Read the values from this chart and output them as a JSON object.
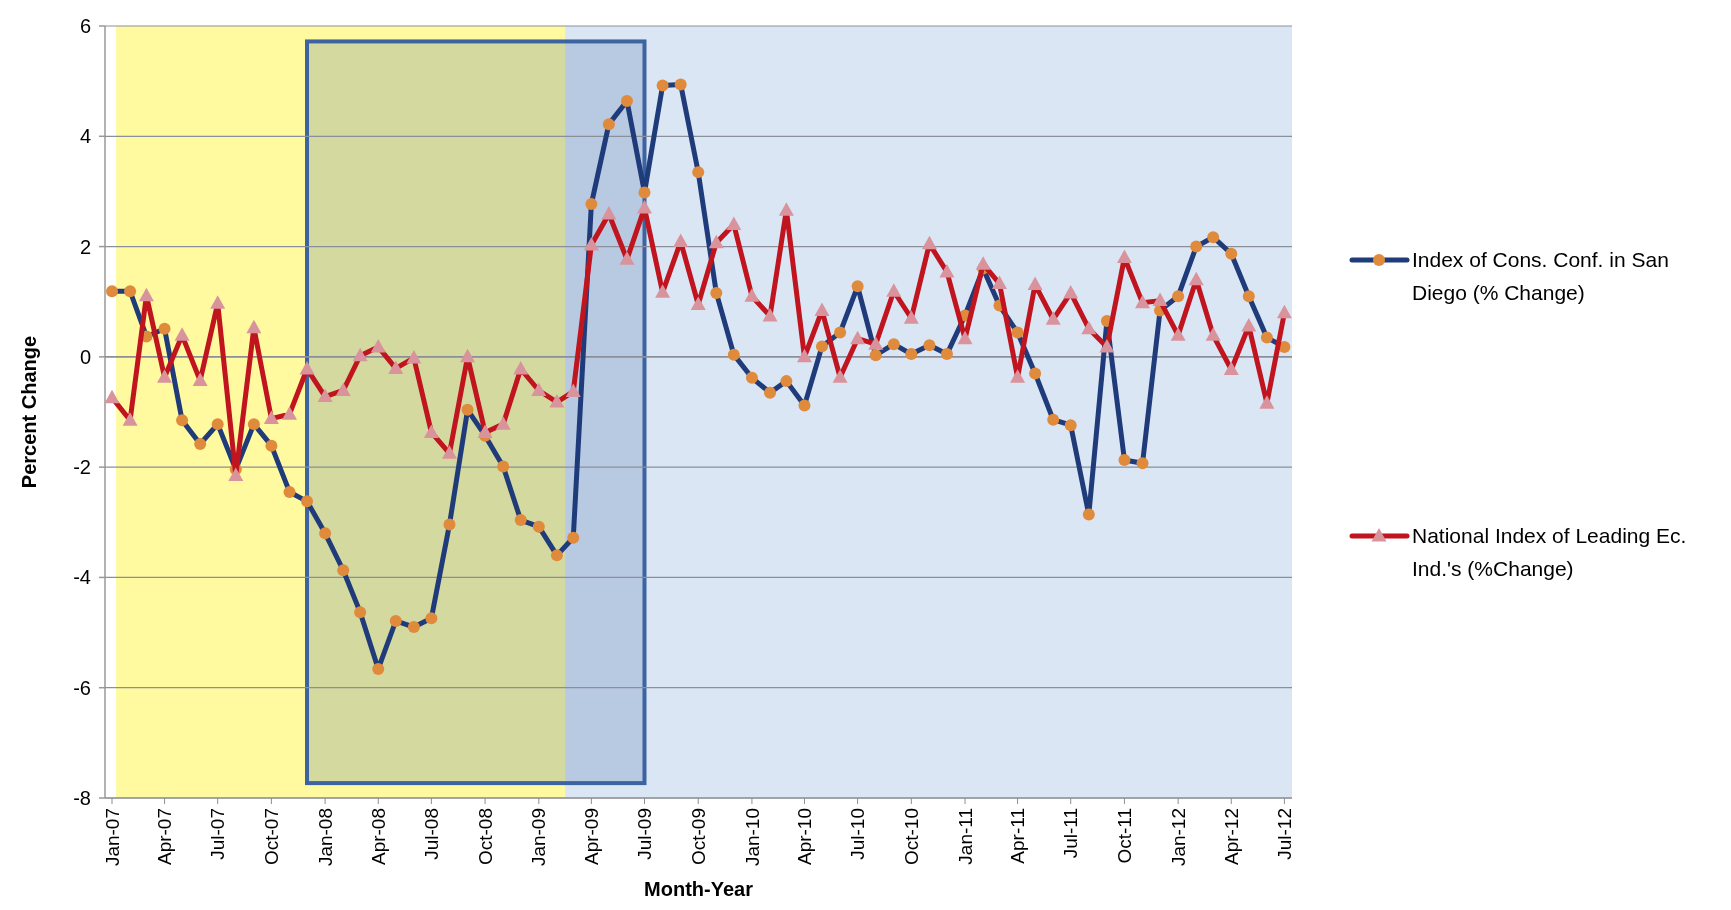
{
  "chart_data": {
    "type": "line",
    "xlabel": "Month-Year",
    "ylabel": "Percent Change",
    "x": [
      "2007-01",
      "2007-02",
      "2007-03",
      "2007-04",
      "2007-05",
      "2007-06",
      "2007-07",
      "2007-08",
      "2007-09",
      "2007-10",
      "2007-11",
      "2007-12",
      "2008-01",
      "2008-02",
      "2008-03",
      "2008-04",
      "2008-05",
      "2008-06",
      "2008-07",
      "2008-08",
      "2008-09",
      "2008-10",
      "2008-11",
      "2008-12",
      "2009-01",
      "2009-02",
      "2009-03",
      "2009-04",
      "2009-05",
      "2009-06",
      "2009-07",
      "2009-08",
      "2009-09",
      "2009-10",
      "2009-11",
      "2009-12",
      "2010-01",
      "2010-02",
      "2010-03",
      "2010-04",
      "2010-05",
      "2010-06",
      "2010-07",
      "2010-08",
      "2010-09",
      "2010-10",
      "2010-11",
      "2010-12",
      "2011-01",
      "2011-02",
      "2011-03",
      "2011-04",
      "2011-05",
      "2011-06",
      "2011-07",
      "2011-08",
      "2011-09",
      "2011-10",
      "2011-11",
      "2011-12",
      "2012-01",
      "2012-02",
      "2012-03",
      "2012-04",
      "2012-05",
      "2012-06",
      "2012-07"
    ],
    "series": [
      {
        "name": "Index of Cons. Conf. in San Diego (% Change)",
        "color": "#1f3b7a",
        "marker": "circle",
        "values": [
          1.19,
          1.19,
          0.37,
          0.51,
          -1.15,
          -1.58,
          -1.22,
          -2.04,
          -1.22,
          -1.61,
          -2.45,
          -2.62,
          -3.2,
          -3.87,
          -4.63,
          -5.66,
          -4.79,
          -4.9,
          -4.74,
          -3.04,
          -0.96,
          -1.43,
          -1.99,
          -2.96,
          -3.08,
          -3.6,
          -3.28,
          2.77,
          4.22,
          4.64,
          2.98,
          4.92,
          4.94,
          3.35,
          1.16,
          0.04,
          -0.38,
          -0.65,
          -0.44,
          -0.88,
          0.19,
          0.44,
          1.28,
          0.03,
          0.23,
          0.05,
          0.21,
          0.05,
          0.75,
          1.6,
          0.93,
          0.44,
          -0.3,
          -1.14,
          -1.24,
          -2.86,
          0.65,
          -1.87,
          -1.93,
          0.84,
          1.1,
          2.0,
          2.17,
          1.87,
          1.1,
          0.35,
          0.18
        ]
      },
      {
        "name": "National Index of Leading Ec. Ind.'s (%Change)",
        "color": "#c0141e",
        "marker": "triangle",
        "values": [
          -0.74,
          -1.15,
          1.11,
          -0.37,
          0.39,
          -0.43,
          0.97,
          -2.15,
          0.53,
          -1.12,
          -1.04,
          -0.22,
          -0.72,
          -0.61,
          0.02,
          0.18,
          -0.21,
          -0.02,
          -1.37,
          -1.75,
          0.0,
          -1.37,
          -1.22,
          -0.22,
          -0.61,
          -0.82,
          -0.63,
          2.03,
          2.59,
          1.77,
          2.7,
          1.17,
          2.09,
          0.95,
          2.07,
          2.4,
          1.1,
          0.74,
          2.66,
          0.0,
          0.84,
          -0.37,
          0.33,
          0.23,
          1.19,
          0.7,
          2.05,
          1.54,
          0.33,
          1.68,
          1.33,
          -0.37,
          1.31,
          0.68,
          1.16,
          0.51,
          0.18,
          1.8,
          0.98,
          1.02,
          0.39,
          1.4,
          0.39,
          -0.23,
          0.56,
          -0.84,
          0.8
        ]
      }
    ],
    "xlim": [
      "2006-12-20",
      "2012-07-14"
    ],
    "xticks": [
      {
        "value": "2007-01",
        "label": "Jan-07"
      },
      {
        "value": "2007-04",
        "label": "Apr-07"
      },
      {
        "value": "2007-07",
        "label": "Jul-07"
      },
      {
        "value": "2007-10",
        "label": "Oct-07"
      },
      {
        "value": "2008-01",
        "label": "Jan-08"
      },
      {
        "value": "2008-04",
        "label": "Apr-08"
      },
      {
        "value": "2008-07",
        "label": "Jul-08"
      },
      {
        "value": "2008-10",
        "label": "Oct-08"
      },
      {
        "value": "2009-01",
        "label": "Jan-09"
      },
      {
        "value": "2009-04",
        "label": "Apr-09"
      },
      {
        "value": "2009-07",
        "label": "Jul-09"
      },
      {
        "value": "2009-10",
        "label": "Oct-09"
      },
      {
        "value": "2010-01",
        "label": "Jan-10"
      },
      {
        "value": "2010-04",
        "label": "Apr-10"
      },
      {
        "value": "2010-07",
        "label": "Jul-10"
      },
      {
        "value": "2010-10",
        "label": "Oct-10"
      },
      {
        "value": "2011-01",
        "label": "Jan-11"
      },
      {
        "value": "2011-04",
        "label": "Apr-11"
      },
      {
        "value": "2011-07",
        "label": "Jul-11"
      },
      {
        "value": "2011-10",
        "label": "Oct-11"
      },
      {
        "value": "2012-01",
        "label": "Jan-12"
      },
      {
        "value": "2012-04",
        "label": "Apr-12"
      },
      {
        "value": "2012-07",
        "label": "Jul-12"
      }
    ],
    "ylim": [
      -8,
      6
    ],
    "yticks": [
      -8,
      -6,
      -4,
      -2,
      0,
      2,
      4,
      6
    ],
    "grid": "y",
    "legend": "right",
    "bands": [
      {
        "axis": "x",
        "from": "2007-01-08",
        "to": "2009-02-15",
        "color": "#fffaa0"
      },
      {
        "axis": "x",
        "from": "2009-02-15",
        "to": "2012-07-14",
        "color": "#dbe6f5"
      },
      {
        "axis": "x",
        "from": "2007-12-01",
        "to": "2009-07-01",
        "color": "#3c64a0"
      }
    ]
  }
}
